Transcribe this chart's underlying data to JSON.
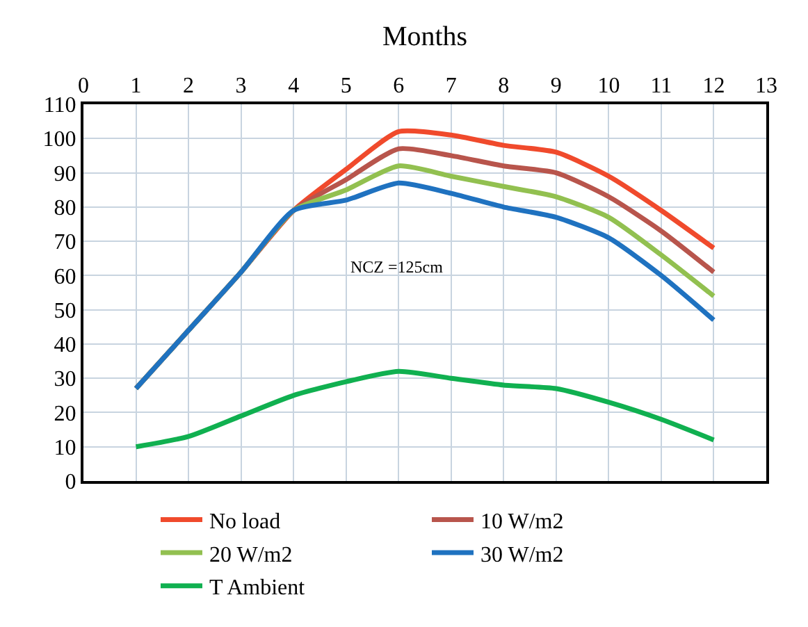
{
  "chart_data": {
    "type": "line",
    "xlabel": "Months",
    "x": [
      1,
      2,
      3,
      4,
      5,
      6,
      7,
      8,
      9,
      10,
      11,
      12
    ],
    "xlim": [
      0,
      13
    ],
    "xticks": [
      0,
      1,
      2,
      3,
      4,
      5,
      6,
      7,
      8,
      9,
      10,
      11,
      12,
      13
    ],
    "ylim": [
      0,
      110
    ],
    "yticks": [
      0,
      10,
      20,
      30,
      40,
      50,
      60,
      70,
      80,
      90,
      100,
      110
    ],
    "grid": true,
    "legend": "bottom",
    "marker": "none",
    "line_style": "solid",
    "series": [
      {
        "name": "No load",
        "color": "#f04a2c",
        "values": [
          27,
          44,
          61,
          79,
          91,
          102,
          101,
          98,
          96,
          89,
          79,
          68
        ]
      },
      {
        "name": "10 W/m2",
        "color": "#b8554c",
        "values": [
          27,
          44,
          61,
          79,
          88,
          97,
          95,
          92,
          90,
          83,
          73,
          61
        ]
      },
      {
        "name": "20 W/m2",
        "color": "#92c050",
        "values": [
          27,
          44,
          61,
          79,
          85,
          92,
          89,
          86,
          83,
          77,
          66,
          54
        ]
      },
      {
        "name": "30 W/m2",
        "color": "#1f72c0",
        "values": [
          27,
          44,
          61,
          79,
          82,
          87,
          84,
          80,
          77,
          71,
          60,
          47
        ]
      },
      {
        "name": "T Ambient",
        "color": "#10b050",
        "values": [
          10,
          13,
          19,
          25,
          29,
          32,
          30,
          28,
          27,
          23,
          18,
          12
        ]
      }
    ],
    "annotations": [
      "NCZ =125cm"
    ]
  }
}
